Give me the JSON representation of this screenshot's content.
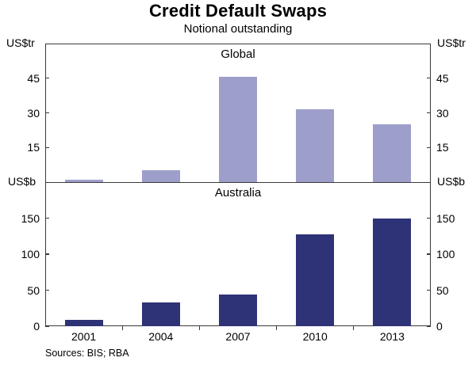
{
  "title": "Credit Default Swaps",
  "subtitle": "Notional outstanding",
  "source_note": "Sources: BIS; RBA",
  "chart_data": {
    "type": "bar",
    "categories": [
      "2001",
      "2004",
      "2007",
      "2010",
      "2013"
    ],
    "panels": [
      {
        "label": "Global",
        "unit": "US$tr",
        "values": [
          1,
          5,
          45.5,
          31.5,
          25
        ],
        "yticks": [
          15,
          30,
          45
        ],
        "ylim": [
          0,
          60
        ],
        "color": "#9e9ecb",
        "legend": "none",
        "grid": false
      },
      {
        "label": "Australia",
        "unit": "US$b",
        "values": [
          9,
          33,
          44,
          127,
          150
        ],
        "yticks": [
          0,
          50,
          100,
          150
        ],
        "ylim": [
          0,
          200
        ],
        "color": "#2e3277",
        "legend": "none",
        "grid": false
      }
    ]
  }
}
